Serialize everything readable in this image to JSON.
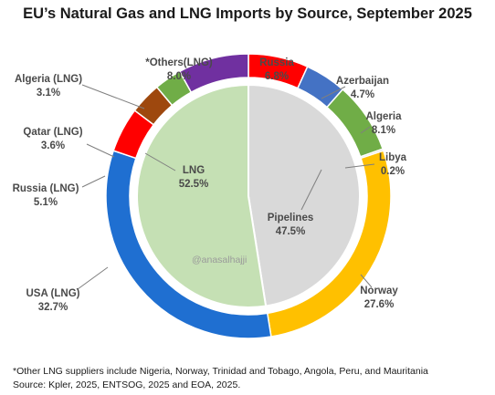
{
  "chart_data": {
    "type": "pie",
    "title": "EU’s Natural Gas and LNG Imports by Source, September 2025",
    "outer_ring": [
      {
        "label": "Russia",
        "value": 6.8,
        "display": "6.8%",
        "color": "#ff0000"
      },
      {
        "label": "Azerbaijan",
        "value": 4.7,
        "display": "4.7%",
        "color": "#4472c4"
      },
      {
        "label": "Algeria",
        "value": 8.1,
        "display": "8.1%",
        "color": "#70ad47"
      },
      {
        "label": "Libya",
        "value": 0.2,
        "display": "0.2%",
        "color": "#a5a5a5"
      },
      {
        "label": "Norway",
        "value": 27.6,
        "display": "27.6%",
        "color": "#ffc000"
      },
      {
        "label": "USA (LNG)",
        "value": 32.7,
        "display": "32.7%",
        "color": "#1f6fd1"
      },
      {
        "label": "Russia (LNG)",
        "value": 5.1,
        "display": "5.1%",
        "color": "#ff0000"
      },
      {
        "label": "Qatar (LNG)",
        "value": 3.6,
        "display": "3.6%",
        "color": "#9e480e"
      },
      {
        "label": "Algeria  (LNG)",
        "value": 3.1,
        "display": "3.1%",
        "color": "#70ad47"
      },
      {
        "label": "*Others(LNG)",
        "value": 8.0,
        "display": "8.0%",
        "color": "#7030a0"
      }
    ],
    "inner_ring": [
      {
        "label": "Pipelines",
        "value": 47.5,
        "display": "47.5%",
        "color": "#d9d9d9"
      },
      {
        "label": "LNG",
        "value": 52.5,
        "display": "52.5%",
        "color": "#c5e0b4"
      }
    ]
  },
  "watermark": "@anasalhajji",
  "footnote_lines": [
    "*Other LNG suppliers include Nigeria, Norway, Trinidad and Tobago, Angola, Peru, and Mauritania",
    "Source: Kpler, 2025, ENTSOG, 2025  and EOA, 2025."
  ]
}
